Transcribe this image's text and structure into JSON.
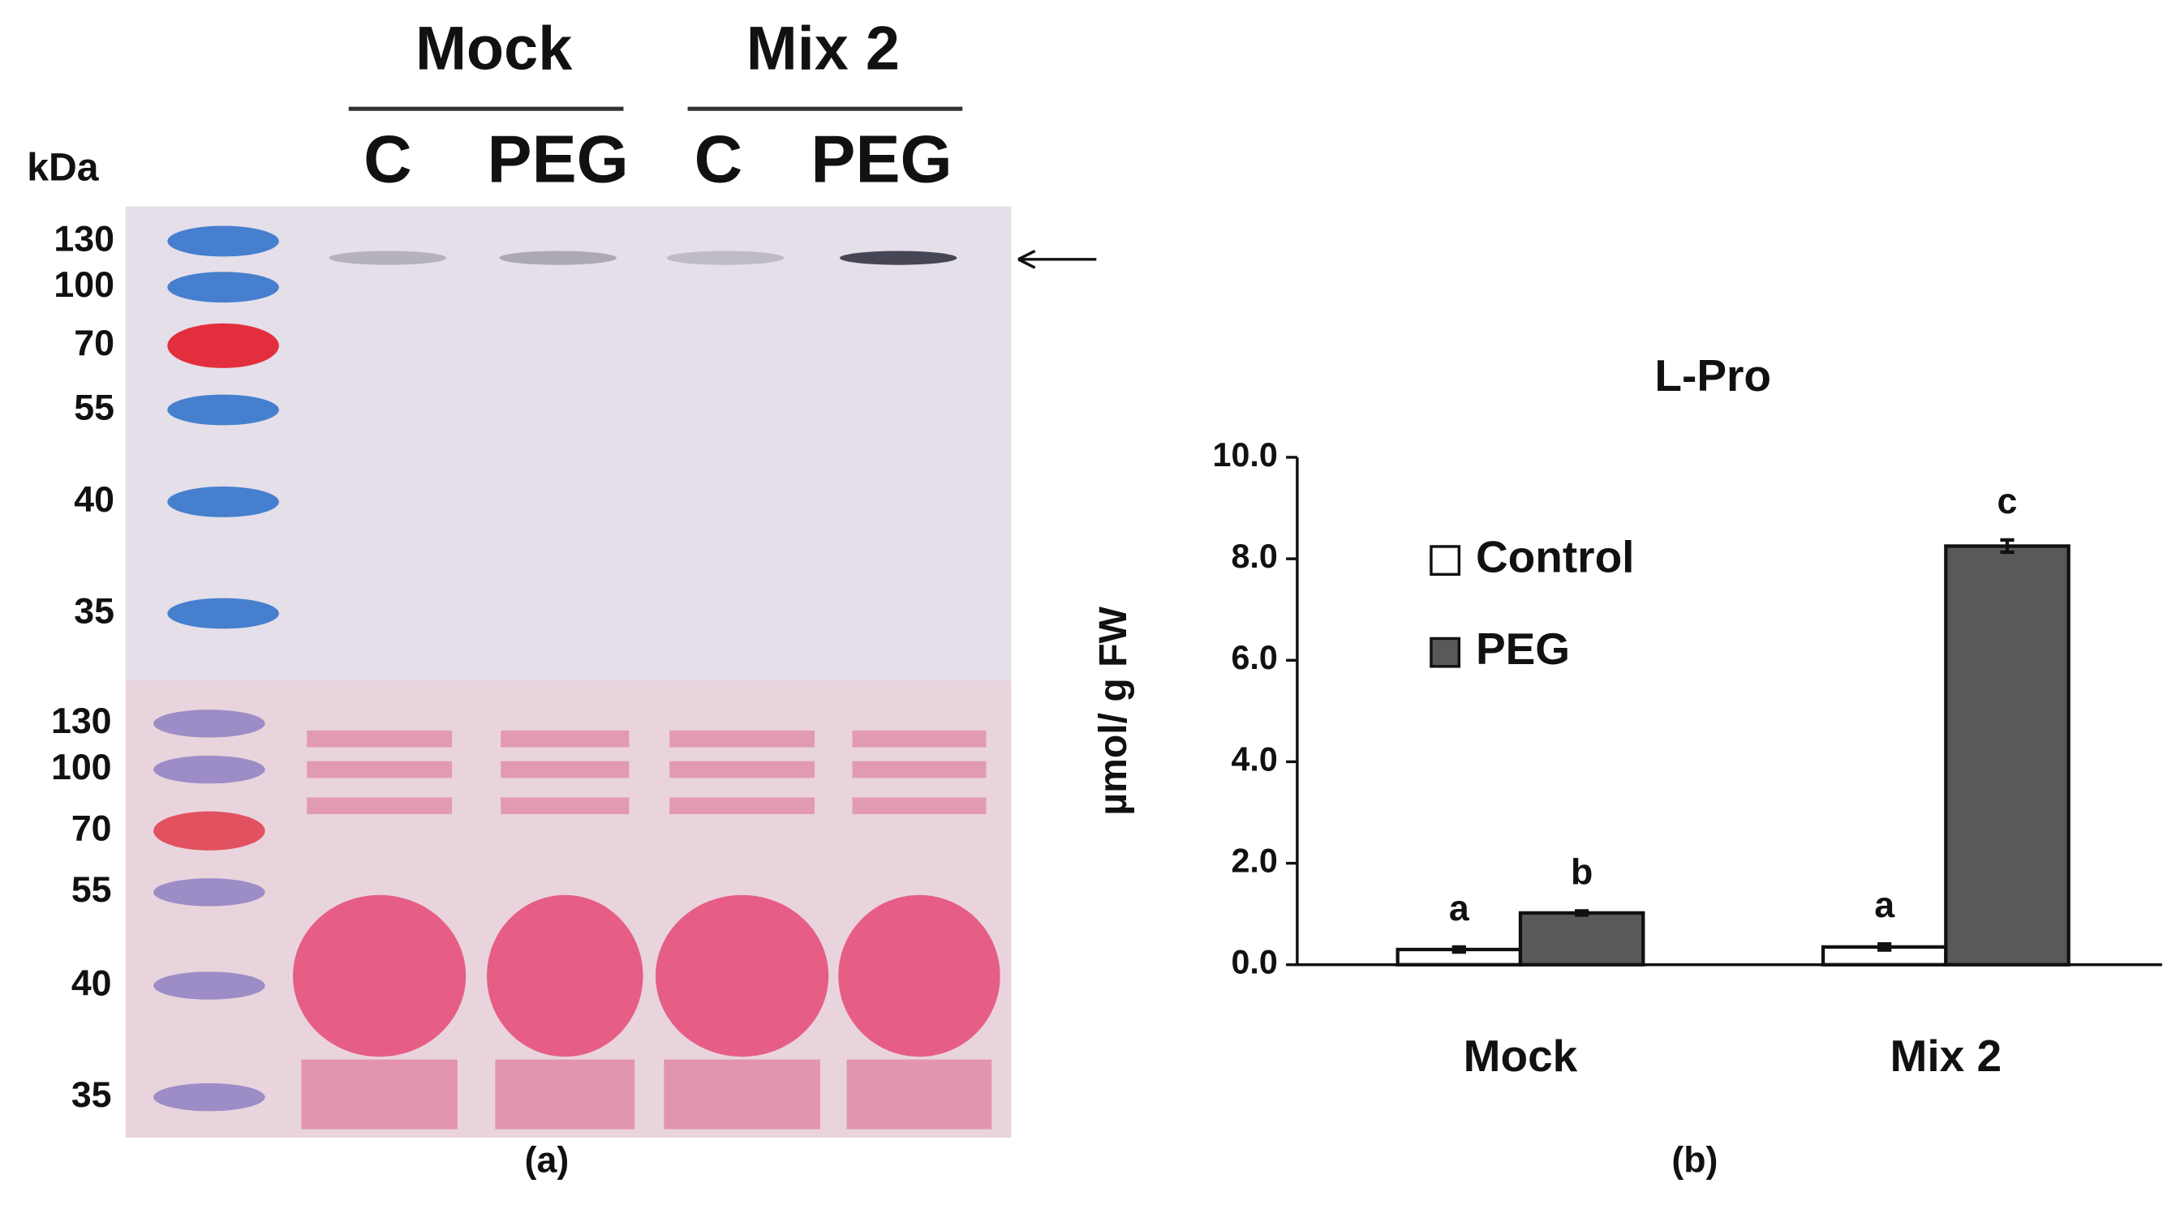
{
  "blot": {
    "groups": [
      "Mock",
      "Mix 2"
    ],
    "lanes": [
      "C",
      "PEG",
      "C",
      "PEG"
    ],
    "unit": "kDa",
    "markers_top": [
      "130",
      "100",
      "70",
      "55",
      "40",
      "35"
    ],
    "markers_bottom": [
      "130",
      "100",
      "70",
      "55",
      "40",
      "35"
    ],
    "caption": "(a)"
  },
  "chart_data": {
    "type": "bar",
    "title": "L-Pro",
    "ylabel": "µmol/ g FW",
    "caption": "(b)",
    "categories": [
      "Mock",
      "Mix 2"
    ],
    "series": [
      {
        "name": "Control",
        "color": "#ffffff",
        "values": [
          0.3,
          0.35
        ],
        "errors": [
          0.05,
          0.06
        ],
        "letters": [
          "a",
          "a"
        ]
      },
      {
        "name": "PEG",
        "color": "#595959",
        "values": [
          1.02,
          8.25
        ],
        "errors": [
          0.04,
          0.12
        ],
        "letters": [
          "b",
          "c"
        ]
      }
    ],
    "ylim": [
      0,
      10
    ],
    "yticks": [
      {
        "value": 0,
        "label": "0.0"
      },
      {
        "value": 2,
        "label": "2.0"
      },
      {
        "value": 4,
        "label": "4.0"
      },
      {
        "value": 6,
        "label": "6.0"
      },
      {
        "value": 8,
        "label": "8.0"
      },
      {
        "value": 10,
        "label": "10.0"
      }
    ],
    "legend": "upper-left"
  }
}
